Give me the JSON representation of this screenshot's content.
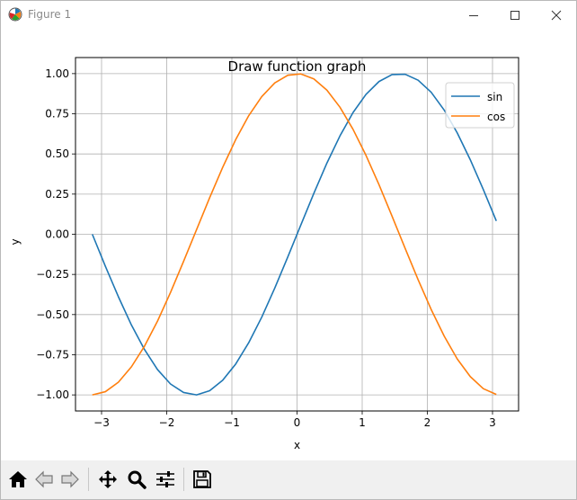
{
  "window": {
    "title": "Figure 1",
    "controls": [
      "minimize",
      "maximize",
      "close"
    ]
  },
  "toolbar": {
    "buttons": [
      {
        "name": "home",
        "icon": "home-icon"
      },
      {
        "name": "back",
        "icon": "arrow-left-icon"
      },
      {
        "name": "forward",
        "icon": "arrow-right-icon"
      },
      {
        "name": "pan",
        "icon": "move-icon"
      },
      {
        "name": "zoom",
        "icon": "magnifier-icon"
      },
      {
        "name": "configure-subplots",
        "icon": "sliders-icon"
      },
      {
        "name": "save",
        "icon": "floppy-disk-icon"
      }
    ]
  },
  "chart_data": {
    "type": "line",
    "title": "Draw function graph",
    "xlabel": "x",
    "ylabel": "y",
    "xlim": [
      -3.4,
      3.4
    ],
    "ylim": [
      -1.1,
      1.1
    ],
    "xticks": [
      -3,
      -2,
      -1,
      0,
      1,
      2,
      3
    ],
    "xtick_labels": [
      "−3",
      "−2",
      "−1",
      "0",
      "1",
      "2",
      "3"
    ],
    "yticks": [
      -1.0,
      -0.75,
      -0.5,
      -0.25,
      0.0,
      0.25,
      0.5,
      0.75,
      1.0
    ],
    "ytick_labels": [
      "−1.00",
      "−0.75",
      "−0.50",
      "−0.25",
      "0.00",
      "0.25",
      "0.50",
      "0.75",
      "1.00"
    ],
    "grid": true,
    "legend_position": "top-right",
    "series": [
      {
        "name": "sin",
        "color": "#1f77b4",
        "x": [
          -3.1416,
          -2.9416,
          -2.7416,
          -2.5416,
          -2.3416,
          -2.1416,
          -1.9416,
          -1.7416,
          -1.5416,
          -1.3416,
          -1.1416,
          -0.9416,
          -0.7416,
          -0.5416,
          -0.3416,
          -0.1416,
          0.0584,
          0.2584,
          0.4584,
          0.6584,
          0.8584,
          1.0584,
          1.2584,
          1.4584,
          1.6584,
          1.8584,
          2.0584,
          2.2584,
          2.4584,
          2.6584,
          2.8584,
          3.0584
        ],
        "y": [
          0.0,
          -0.199,
          -0.389,
          -0.565,
          -0.717,
          -0.842,
          -0.932,
          -0.985,
          -1.0,
          -0.974,
          -0.909,
          -0.808,
          -0.675,
          -0.516,
          -0.335,
          -0.141,
          0.058,
          0.255,
          0.443,
          0.612,
          0.757,
          0.871,
          0.951,
          0.994,
          0.996,
          0.959,
          0.884,
          0.773,
          0.631,
          0.464,
          0.279,
          0.083
        ]
      },
      {
        "name": "cos",
        "color": "#ff7f0e",
        "x": [
          -3.1416,
          -2.9416,
          -2.7416,
          -2.5416,
          -2.3416,
          -2.1416,
          -1.9416,
          -1.7416,
          -1.5416,
          -1.3416,
          -1.1416,
          -0.9416,
          -0.7416,
          -0.5416,
          -0.3416,
          -0.1416,
          0.0584,
          0.2584,
          0.4584,
          0.6584,
          0.8584,
          1.0584,
          1.2584,
          1.4584,
          1.6584,
          1.8584,
          2.0584,
          2.2584,
          2.4584,
          2.6584,
          2.8584,
          3.0584
        ],
        "y": [
          -1.0,
          -0.98,
          -0.921,
          -0.825,
          -0.697,
          -0.541,
          -0.362,
          -0.169,
          0.029,
          0.227,
          0.416,
          0.589,
          0.738,
          0.857,
          0.942,
          0.99,
          0.998,
          0.967,
          0.897,
          0.791,
          0.654,
          0.491,
          0.308,
          0.112,
          -0.087,
          -0.283,
          -0.468,
          -0.634,
          -0.776,
          -0.886,
          -0.961,
          -0.997
        ]
      }
    ]
  }
}
